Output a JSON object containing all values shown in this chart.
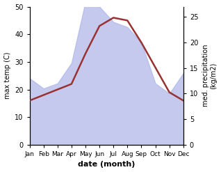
{
  "months": [
    "Jan",
    "Feb",
    "Mar",
    "Apr",
    "May",
    "Jun",
    "Jul",
    "Aug",
    "Sep",
    "Oct",
    "Nov",
    "Dec"
  ],
  "x": [
    0,
    1,
    2,
    3,
    4,
    5,
    6,
    7,
    8,
    9,
    10,
    11
  ],
  "temp": [
    16,
    18,
    20,
    22,
    33,
    43,
    46,
    45,
    37,
    28,
    19,
    16
  ],
  "precip": [
    13,
    11,
    12,
    16,
    28,
    27,
    24,
    23,
    20,
    12,
    10,
    14
  ],
  "temp_color": "#993333",
  "precip_fill_color": "#b0b8e8",
  "precip_alpha": 0.75,
  "ylim_left": [
    0,
    50
  ],
  "ylim_right": [
    0,
    27
  ],
  "yticks_left": [
    0,
    10,
    20,
    30,
    40,
    50
  ],
  "yticks_right": [
    0,
    5,
    10,
    15,
    20,
    25
  ],
  "ylabel_left": "max temp (C)",
  "ylabel_right": "med. precipitation\n(kg/m2)",
  "xlabel": "date (month)",
  "temp_linewidth": 1.8,
  "figsize": [
    3.18,
    2.47
  ],
  "dpi": 100
}
